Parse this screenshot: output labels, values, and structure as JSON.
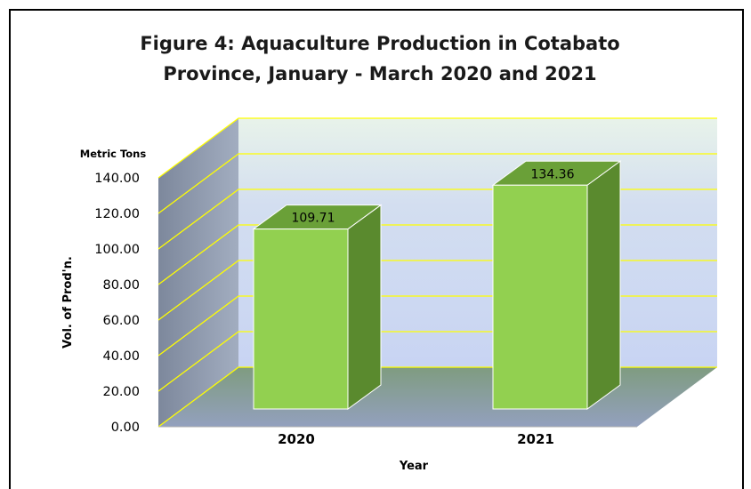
{
  "chart_data": {
    "type": "bar",
    "title_line1": "Figure 4: Aquaculture Production in Cotabato",
    "title_line2": "Province, January - March 2020 and 2021",
    "unit_label": "Metric Tons",
    "ylabel": "Vol. of Prod'n.",
    "xlabel": "Year",
    "categories": [
      "2020",
      "2021"
    ],
    "values": [
      109.71,
      134.36
    ],
    "data_labels": [
      "109.71",
      "134.36"
    ],
    "ylim": [
      0,
      140
    ],
    "yticks": [
      "0.00",
      "20.00",
      "40.00",
      "60.00",
      "80.00",
      "100.00",
      "120.00",
      "140.00"
    ],
    "grid": true,
    "legend": "none"
  },
  "colors": {
    "bar_front": "#92d050",
    "bar_top": "#6aa038",
    "bar_side": "#5a8a2e",
    "gridline": "#ffff00",
    "back_wall_top": "#e6f2ec",
    "back_wall_bottom": "#c5d2f2",
    "side_wall": "#8f9bb0",
    "floor": "#8e9ab2"
  }
}
